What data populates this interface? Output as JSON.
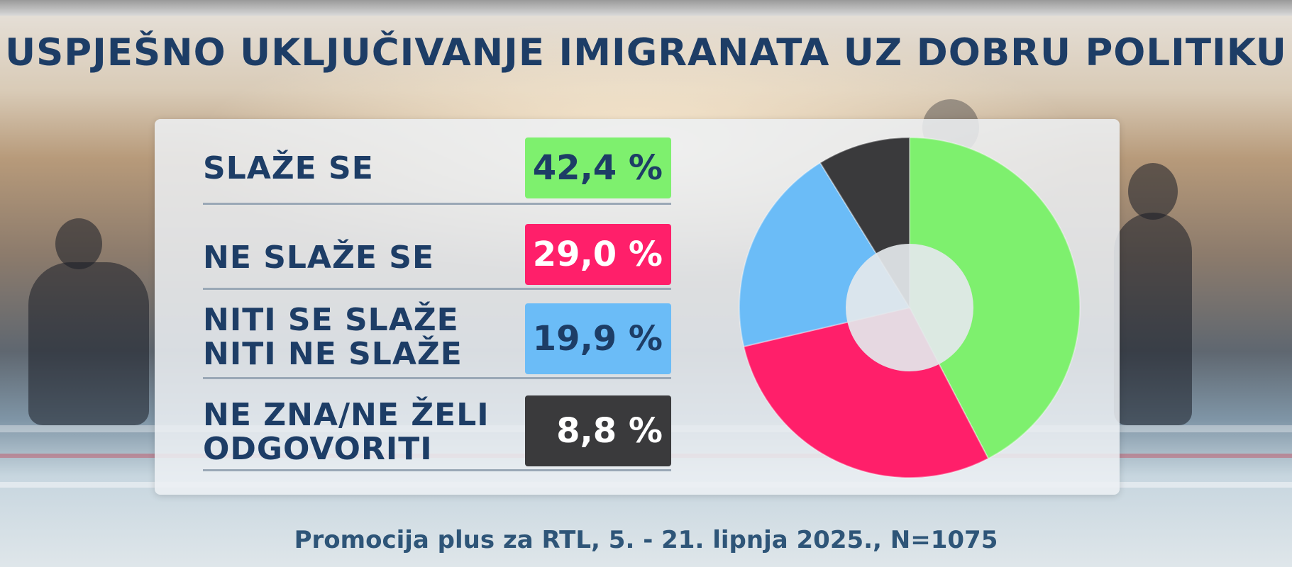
{
  "title": "USPJEŠNO UKLJUČIVANJE IMIGRANATA UZ DOBRU POLITIKU",
  "source": "Promocija plus za RTL, 5. - 21. lipnja 2025., N=1075",
  "colors": {
    "agree": "#7ef06e",
    "disagree": "#ff1f6a",
    "neutral": "#6bbcf7",
    "dont_know": "#3a3a3c",
    "title": "#1d3d66"
  },
  "rows": [
    {
      "label_lines": [
        "SLAŽE SE"
      ],
      "value": "42,4 %",
      "text_color": "#1d3d66"
    },
    {
      "label_lines": [
        "NE SLAŽE SE"
      ],
      "value": "29,0 %",
      "text_color": "#ffffff"
    },
    {
      "label_lines": [
        "NITI SE SLAŽE",
        "NITI NE SLAŽE"
      ],
      "value": "19,9 %",
      "text_color": "#1d3d66"
    },
    {
      "label_lines": [
        "NE ZNA/NE ŽELI",
        "ODGOVORITI"
      ],
      "value": "8,8 %",
      "text_color": "#ffffff"
    }
  ],
  "chart_data": {
    "type": "pie",
    "variant": "donut",
    "title": "USPJEŠNO UKLJUČIVANJE IMIGRANATA UZ DOBRU POLITIKU",
    "categories": [
      "SLAŽE SE",
      "NE SLAŽE SE",
      "NITI SE SLAŽE NITI NE SLAŽE",
      "NE ZNA/NE ŽELI ODGOVORITI"
    ],
    "values": [
      42.4,
      29.0,
      19.9,
      8.8
    ],
    "unit": "%",
    "colors": [
      "#7ef06e",
      "#ff1f6a",
      "#6bbcf7",
      "#3a3a3c"
    ],
    "start_angle": "12 o'clock",
    "direction": "clockwise"
  }
}
